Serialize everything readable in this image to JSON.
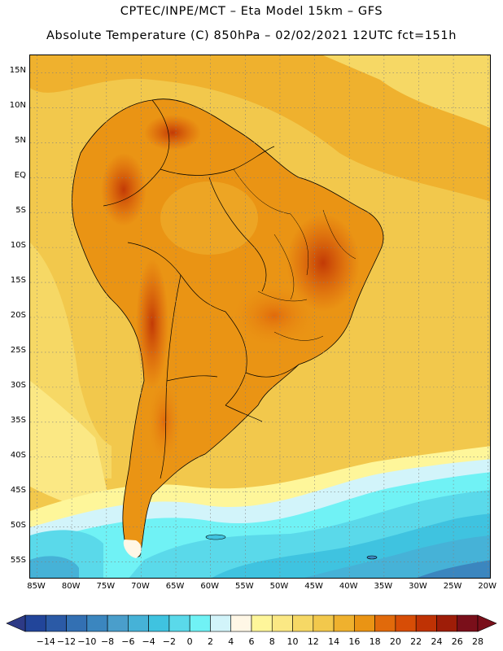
{
  "header": {
    "title_line1": "CPTEC/INPE/MCT –  Eta Model 15km – GFS",
    "title_line2": "Absolute Temperature (C) 850hPa – 02/02/2021 12UTC fct=151h"
  },
  "map": {
    "lat_labels": [
      "15N",
      "10N",
      "5N",
      "EQ",
      "5S",
      "10S",
      "15S",
      "20S",
      "25S",
      "30S",
      "35S",
      "40S",
      "45S",
      "50S",
      "55S"
    ],
    "lon_labels": [
      "85W",
      "80W",
      "75W",
      "70W",
      "65W",
      "60W",
      "55W",
      "50W",
      "45W",
      "40W",
      "35W",
      "30W",
      "25W",
      "20W"
    ],
    "graticule_lat": [
      15,
      10,
      5,
      0,
      -5,
      -10,
      -15,
      -20,
      -25,
      -30,
      -35,
      -40,
      -45,
      -50,
      -55
    ],
    "graticule_lon": [
      -85,
      -80,
      -75,
      -70,
      -65,
      -60,
      -55,
      -50,
      -45,
      -40,
      -35,
      -30,
      -25,
      -20
    ],
    "domain": {
      "west": -86,
      "east": -19.5,
      "north": 17.5,
      "south": -57.5
    }
  },
  "colorbar": {
    "labels": [
      "-14",
      "-12",
      "-10",
      "-8",
      "-6",
      "-4",
      "-2",
      "0",
      "2",
      "4",
      "6",
      "8",
      "10",
      "12",
      "14",
      "16",
      "18",
      "20",
      "22",
      "24",
      "26",
      "28"
    ],
    "under_color": "#2d3a86",
    "over_color": "#7a0f1a",
    "colors": [
      "#22459a",
      "#2b5aa6",
      "#3370b3",
      "#3b86bf",
      "#4a9ecb",
      "#46b2d7",
      "#3fc3e0",
      "#5ad9ea",
      "#70f2f5",
      "#d2f4fa",
      "#fff7e6",
      "#fef69a",
      "#fbe884",
      "#f6d865",
      "#f2c84c",
      "#efb12e",
      "#ea9414",
      "#e16a0b",
      "#d74d06",
      "#bf3204",
      "#9e1d08",
      "#7a0f1a"
    ]
  }
}
